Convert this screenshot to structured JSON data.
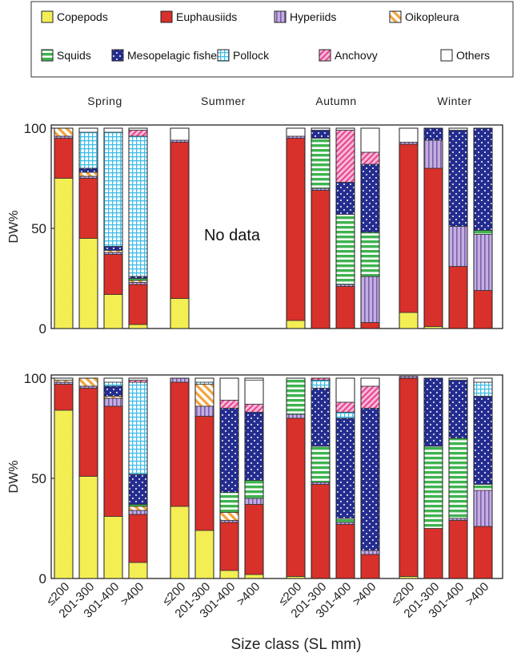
{
  "legend": [
    {
      "name": "Copepods",
      "color": "#f2ec3f",
      "pattern": "dots-yellow"
    },
    {
      "name": "Euphausiids",
      "color": "#d8302a",
      "pattern": "solid"
    },
    {
      "name": "Hyperiids",
      "color": "#a98ccf",
      "pattern": "vertical-stripes"
    },
    {
      "name": "Oikopleura",
      "color": "#f3a33a",
      "pattern": "diagonal-stripes"
    },
    {
      "name": "Squids",
      "color": "#3fb34f",
      "pattern": "horizontal-stripes"
    },
    {
      "name": "Mesopelagic fishes",
      "color": "#242d8f",
      "pattern": "white-dots"
    },
    {
      "name": "Pollock",
      "color": "#3fbde9",
      "pattern": "grid"
    },
    {
      "name": "Anchovy",
      "color": "#e8418f",
      "pattern": "cross-hatch"
    },
    {
      "name": "Others",
      "color": "#ffffff",
      "pattern": "empty"
    }
  ],
  "seasons": [
    "Spring",
    "Summer",
    "Autumn",
    "Winter"
  ],
  "size_classes": [
    "≤200",
    "201-300",
    "301-400",
    ">400"
  ],
  "no_data_label": "No data",
  "xlabel": "Size class (SL mm)",
  "chart_data": [
    {
      "type": "bar",
      "stacked": true,
      "ylabel": "DW%",
      "ylim": [
        0,
        100
      ],
      "yticks": [
        0,
        50,
        100
      ],
      "categories": [
        "≤200",
        "201-300",
        "301-400",
        ">400",
        "≤200",
        "201-300",
        "301-400",
        ">400",
        "≤200",
        "201-300",
        "301-400",
        ">400",
        "≤200",
        "201-300",
        "301-400",
        ">400"
      ],
      "series": [
        {
          "name": "Copepods",
          "values": [
            75,
            45,
            17,
            2,
            15,
            null,
            null,
            null,
            4,
            0,
            0,
            0,
            8,
            1,
            0,
            0
          ]
        },
        {
          "name": "Euphausiids",
          "values": [
            20,
            30,
            20,
            20,
            78,
            null,
            null,
            null,
            91,
            69,
            21,
            3,
            84,
            79,
            31,
            19
          ]
        },
        {
          "name": "Hyperiids",
          "values": [
            1,
            1,
            1,
            1,
            1,
            null,
            null,
            null,
            1,
            1,
            1,
            23,
            1,
            14,
            20,
            28
          ]
        },
        {
          "name": "Oikopleura",
          "values": [
            4,
            2,
            1,
            1,
            0,
            null,
            null,
            null,
            0,
            0,
            0,
            0,
            0,
            0,
            0,
            0
          ]
        },
        {
          "name": "Squids",
          "values": [
            0,
            0,
            0,
            1,
            0,
            null,
            null,
            null,
            0,
            25,
            35,
            22,
            0,
            0,
            0,
            2
          ]
        },
        {
          "name": "Mesopelagic fishes",
          "values": [
            0,
            2,
            2,
            1,
            0,
            null,
            null,
            null,
            0,
            4,
            16,
            34,
            0,
            6,
            48,
            51
          ]
        },
        {
          "name": "Pollock",
          "values": [
            0,
            18,
            57,
            70,
            0,
            null,
            null,
            null,
            0,
            0,
            0,
            0,
            0,
            0,
            0,
            0
          ]
        },
        {
          "name": "Anchovy",
          "values": [
            0,
            0,
            0,
            3,
            0,
            null,
            null,
            null,
            0,
            0,
            26,
            6,
            0,
            0,
            0,
            0
          ]
        },
        {
          "name": "Others",
          "values": [
            0,
            2,
            2,
            1,
            6,
            null,
            null,
            null,
            4,
            1,
            1,
            12,
            7,
            0,
            1,
            0
          ]
        }
      ]
    },
    {
      "type": "bar",
      "stacked": true,
      "ylabel": "DW%",
      "ylim": [
        0,
        100
      ],
      "yticks": [
        0,
        50,
        100
      ],
      "categories": [
        "≤200",
        "201-300",
        "301-400",
        ">400",
        "≤200",
        "201-300",
        "301-400",
        ">400",
        "≤200",
        "201-300",
        "301-400",
        ">400",
        "≤200",
        "201-300",
        "301-400",
        ">400"
      ],
      "series": [
        {
          "name": "Copepods",
          "values": [
            84,
            51,
            31,
            8,
            36,
            24,
            4,
            2,
            1,
            0,
            0,
            0,
            1,
            0,
            0,
            0
          ]
        },
        {
          "name": "Euphausiids",
          "values": [
            13,
            44,
            55,
            24,
            62,
            57,
            24,
            35,
            79,
            47,
            27,
            12,
            99,
            25,
            29,
            26
          ]
        },
        {
          "name": "Hyperiids",
          "values": [
            1,
            1,
            4,
            2,
            2,
            5,
            1,
            3,
            2,
            1,
            1,
            2,
            1,
            0,
            1,
            18
          ]
        },
        {
          "name": "Oikopleura",
          "values": [
            1,
            4,
            1,
            2,
            0,
            11,
            4,
            0,
            0,
            0,
            0,
            0,
            0,
            0,
            0,
            0
          ]
        },
        {
          "name": "Squids",
          "values": [
            0,
            0,
            0,
            1,
            0,
            0,
            10,
            9,
            18,
            18,
            2,
            0,
            0,
            41,
            40,
            3
          ]
        },
        {
          "name": "Mesopelagic fishes",
          "values": [
            0,
            0,
            5,
            15,
            0,
            0,
            42,
            34,
            0,
            29,
            50,
            71,
            0,
            34,
            29,
            44
          ]
        },
        {
          "name": "Pollock",
          "values": [
            0,
            0,
            2,
            46,
            0,
            1,
            0,
            0,
            0,
            4,
            3,
            0,
            0,
            0,
            0,
            7
          ]
        },
        {
          "name": "Anchovy",
          "values": [
            0,
            0,
            0,
            1,
            0,
            0,
            4,
            4,
            0,
            1,
            5,
            11,
            0,
            0,
            0,
            0
          ]
        },
        {
          "name": "Others",
          "values": [
            1,
            0,
            2,
            1,
            0,
            2,
            11,
            12,
            0,
            0,
            12,
            4,
            0,
            0,
            1,
            2
          ]
        }
      ]
    }
  ]
}
